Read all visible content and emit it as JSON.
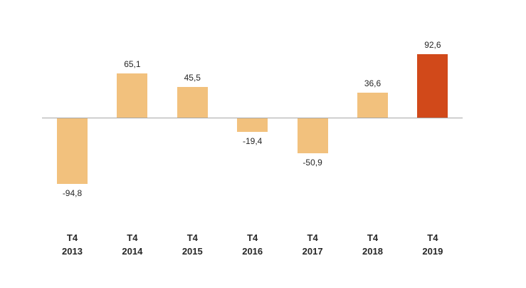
{
  "chart_data": {
    "type": "bar",
    "categories": [
      {
        "quarter": "T4",
        "year": "2013"
      },
      {
        "quarter": "T4",
        "year": "2014"
      },
      {
        "quarter": "T4",
        "year": "2015"
      },
      {
        "quarter": "T4",
        "year": "2016"
      },
      {
        "quarter": "T4",
        "year": "2017"
      },
      {
        "quarter": "T4",
        "year": "2018"
      },
      {
        "quarter": "T4",
        "year": "2019"
      }
    ],
    "values": [
      -94.8,
      65.1,
      45.5,
      -19.4,
      -50.9,
      36.6,
      92.6
    ],
    "value_labels": [
      "-94,8",
      "65,1",
      "45,5",
      "-19,4",
      "-50,9",
      "36,6",
      "92,6"
    ],
    "title": "",
    "xlabel": "",
    "ylabel": "",
    "ylim": [
      -110,
      110
    ],
    "grid": false,
    "legend": false,
    "bar_color": "#F2C17D",
    "highlight_color": "#D1491A",
    "highlight_index": 6,
    "axis_color": "#A6A6A6",
    "text_color": "#262626"
  }
}
